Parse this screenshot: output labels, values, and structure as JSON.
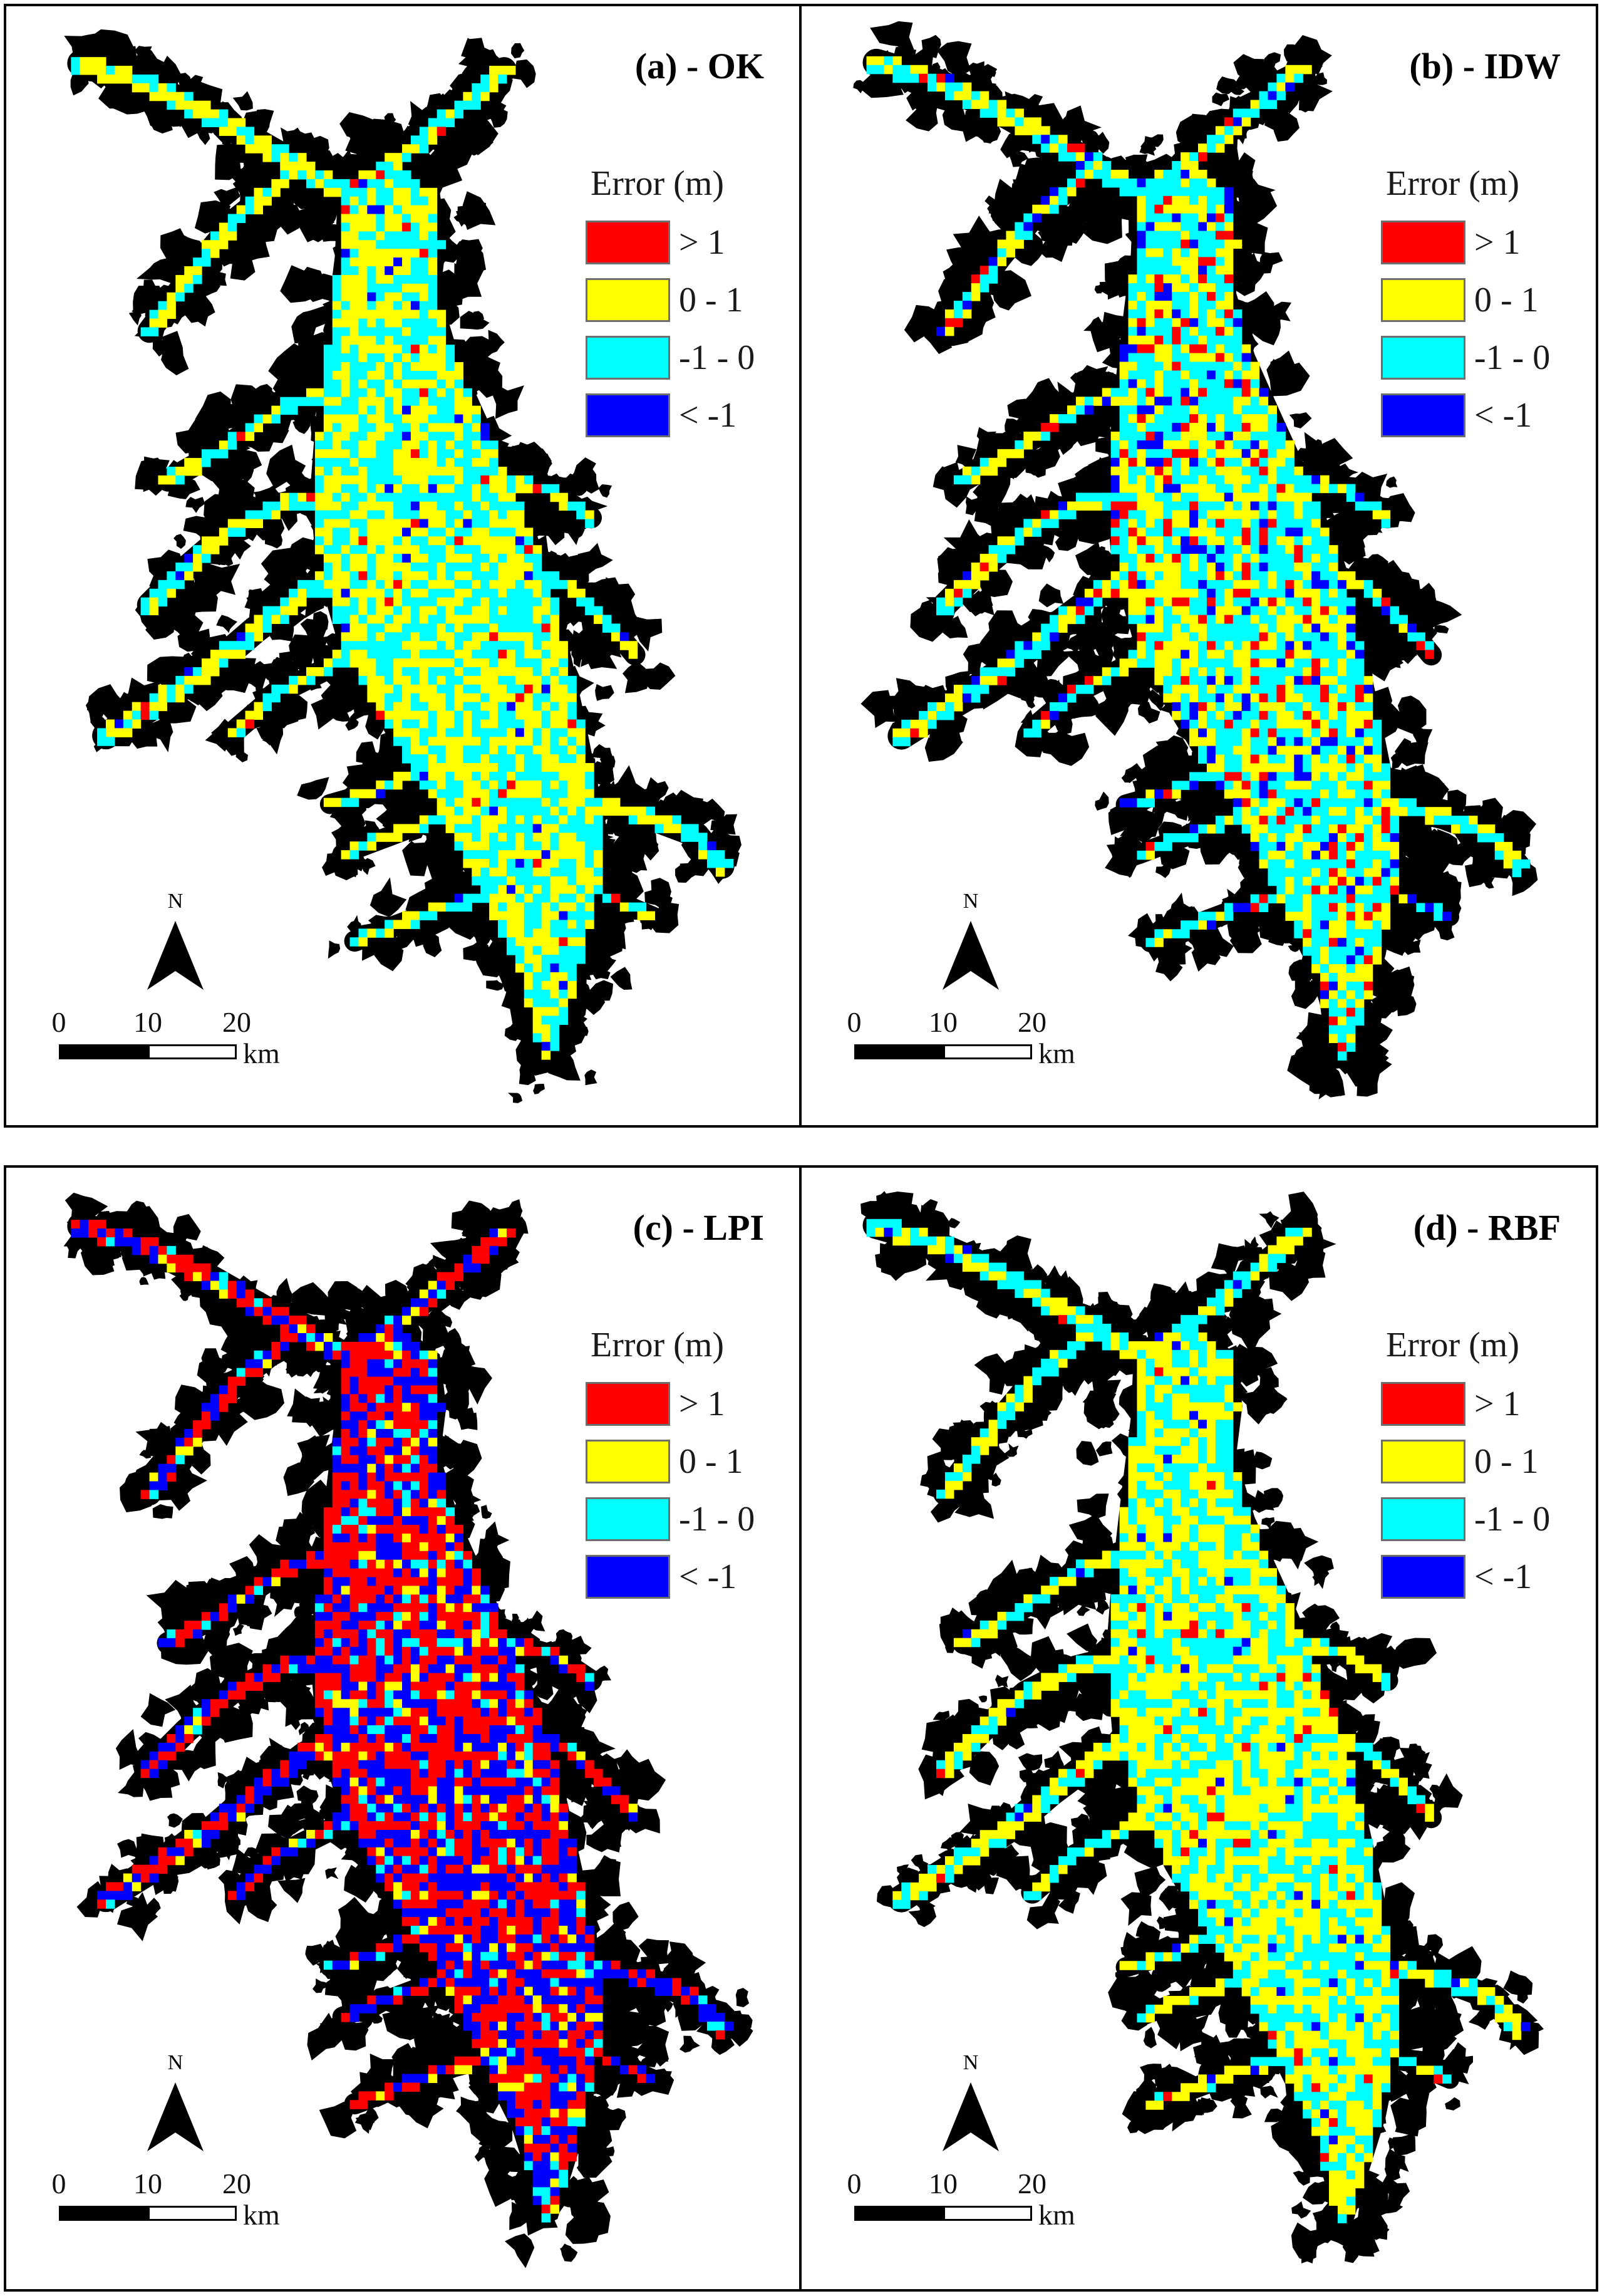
{
  "panels": [
    {
      "id": "a",
      "title": "(a) - OK",
      "mix": [
        0.02,
        0.5,
        0.46,
        0.02
      ],
      "legend_title": "Error (m)",
      "north": "N",
      "scale": {
        "ticks": [
          "0",
          "10",
          "20"
        ],
        "unit": "km"
      }
    },
    {
      "id": "b",
      "title": "(b) - IDW",
      "mix": [
        0.09,
        0.36,
        0.46,
        0.09
      ],
      "legend_title": "Error (m)",
      "north": "N",
      "scale": {
        "ticks": [
          "0",
          "10",
          "20"
        ],
        "unit": "km"
      }
    },
    {
      "id": "c",
      "title": "(c) - LPI",
      "mix": [
        0.44,
        0.09,
        0.09,
        0.38
      ],
      "legend_title": "Error (m)",
      "north": "N",
      "scale": {
        "ticks": [
          "0",
          "10",
          "20"
        ],
        "unit": "km"
      }
    },
    {
      "id": "d",
      "title": "(d) - RBF",
      "mix": [
        0.02,
        0.52,
        0.44,
        0.02
      ],
      "legend_title": "Error (m)",
      "north": "N",
      "scale": {
        "ticks": [
          "0",
          "10",
          "20"
        ],
        "unit": "km"
      }
    }
  ],
  "legend_classes": [
    {
      "label": "> 1",
      "color": "#ff0000"
    },
    {
      "label": "0 - 1",
      "color": "#ffff00"
    },
    {
      "label": "-1 - 0",
      "color": "#00ffff"
    },
    {
      "label": "< -1",
      "color": "#0000ff"
    }
  ],
  "colors": {
    "land_outline": "#000000",
    "background": "#ffffff"
  }
}
